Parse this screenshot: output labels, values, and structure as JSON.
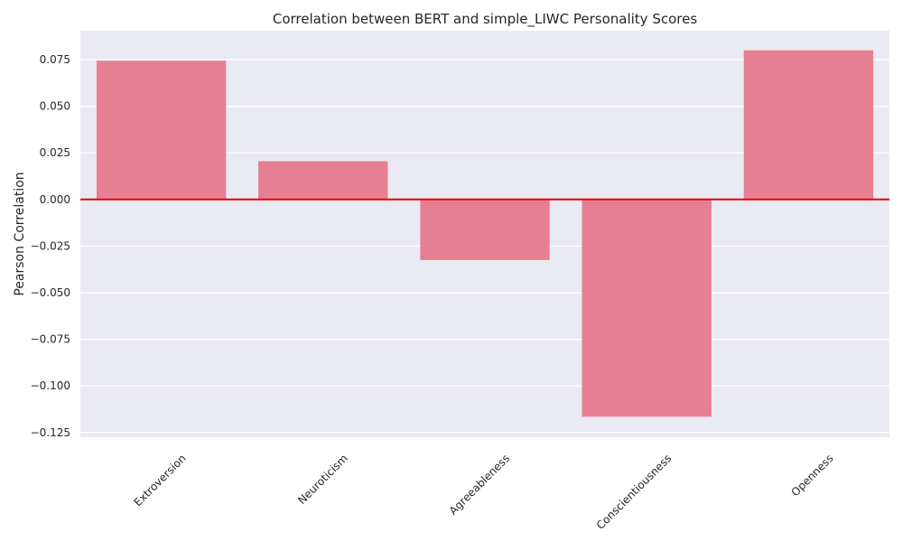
{
  "chart_data": {
    "type": "bar",
    "title": "Correlation between BERT and simple_LIWC Personality Scores",
    "xlabel": "",
    "ylabel": "Pearson Correlation",
    "categories": [
      "Extroversion",
      "Neuroticism",
      "Agreeableness",
      "Conscientiousness",
      "Openness"
    ],
    "values": [
      0.0744,
      0.0205,
      -0.0325,
      -0.1165,
      0.08
    ],
    "ylim": [
      -0.1275,
      0.0905
    ],
    "yticks": [
      0.075,
      0.05,
      0.025,
      0.0,
      -0.025,
      -0.05,
      -0.075,
      -0.1,
      -0.125
    ],
    "ytick_labels": [
      "0.075",
      "0.050",
      "0.025",
      "0.000",
      "−0.025",
      "−0.050",
      "−0.075",
      "−0.100",
      "−0.125"
    ],
    "reference_line": {
      "y": 0,
      "color": "#e8000b"
    },
    "grid": true,
    "bar_color": "#e77f92",
    "background_color": "#eaeaf2"
  }
}
